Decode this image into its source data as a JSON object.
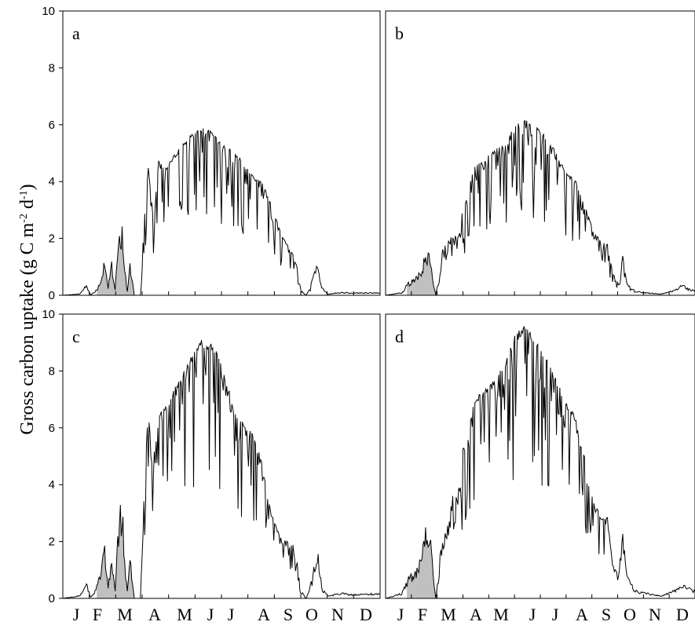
{
  "chart_data": {
    "type": "line",
    "ylabel": "Gross carbon uptake (g C m-2 d-1)",
    "ylabel_parts": {
      "main": "Gross carbon uptake (g C m",
      "exp1": "-2",
      "mid": " d",
      "exp2": "-1",
      "end": ")"
    },
    "ylim": [
      0,
      10
    ],
    "yticks": [
      "0",
      "2",
      "4",
      "6",
      "8",
      "10"
    ],
    "xlim": [
      1,
      365
    ],
    "month_labels": [
      "J",
      "F",
      "M",
      "A",
      "M",
      "J",
      "J",
      "A",
      "S",
      "O",
      "N",
      "D"
    ],
    "grid": false,
    "fill_color": "#c0c0c0",
    "line_color": "#000000",
    "panels": [
      {
        "label": "a",
        "anchors": [
          [
            1,
            0
          ],
          [
            20,
            0.05
          ],
          [
            28,
            0.4
          ],
          [
            33,
            0.02
          ],
          [
            38,
            0.15
          ],
          [
            44,
            0.5
          ],
          [
            49,
            1.5
          ],
          [
            53,
            0.3
          ],
          [
            57,
            1.2
          ],
          [
            61,
            0.2
          ],
          [
            64,
            1.8
          ],
          [
            69,
            2.8
          ],
          [
            72,
            1.0
          ],
          [
            75,
            0.2
          ],
          [
            78,
            1.2
          ],
          [
            83,
            0
          ],
          [
            90,
            0
          ],
          [
            94,
            2.5
          ],
          [
            99,
            4.6
          ],
          [
            104,
            3.0
          ],
          [
            110,
            4.8
          ],
          [
            120,
            4.5
          ],
          [
            130,
            5.0
          ],
          [
            140,
            5.4
          ],
          [
            150,
            5.7
          ],
          [
            160,
            5.9
          ],
          [
            170,
            5.8
          ],
          [
            180,
            5.5
          ],
          [
            190,
            5.2
          ],
          [
            200,
            5.0
          ],
          [
            210,
            4.6
          ],
          [
            220,
            4.2
          ],
          [
            230,
            4.0
          ],
          [
            240,
            3.2
          ],
          [
            250,
            2.3
          ],
          [
            260,
            1.7
          ],
          [
            268,
            1.3
          ],
          [
            274,
            0.2
          ],
          [
            280,
            0
          ],
          [
            284,
            0.2
          ],
          [
            290,
            0.9
          ],
          [
            294,
            1.2
          ],
          [
            298,
            0.3
          ],
          [
            305,
            0.05
          ],
          [
            320,
            0.12
          ],
          [
            335,
            0.1
          ],
          [
            365,
            0.1
          ]
        ],
        "shaded": [
          [
            40,
            86
          ]
        ]
      },
      {
        "label": "b",
        "anchors": [
          [
            1,
            0
          ],
          [
            20,
            0.1
          ],
          [
            28,
            0.5
          ],
          [
            35,
            0.6
          ],
          [
            42,
            1.0
          ],
          [
            48,
            1.6
          ],
          [
            53,
            1.7
          ],
          [
            57,
            0.6
          ],
          [
            60,
            0
          ],
          [
            63,
            0.5
          ],
          [
            68,
            1.6
          ],
          [
            75,
            2.0
          ],
          [
            85,
            2.7
          ],
          [
            95,
            3.3
          ],
          [
            105,
            4.5
          ],
          [
            115,
            4.8
          ],
          [
            125,
            5.0
          ],
          [
            135,
            5.3
          ],
          [
            145,
            5.6
          ],
          [
            155,
            6.0
          ],
          [
            165,
            6.2
          ],
          [
            175,
            6.0
          ],
          [
            185,
            5.8
          ],
          [
            195,
            5.4
          ],
          [
            205,
            4.8
          ],
          [
            215,
            4.3
          ],
          [
            225,
            4.0
          ],
          [
            235,
            3.2
          ],
          [
            245,
            2.3
          ],
          [
            255,
            1.9
          ],
          [
            262,
            1.8
          ],
          [
            268,
            0.8
          ],
          [
            275,
            0.4
          ],
          [
            280,
            1.4
          ],
          [
            285,
            0.4
          ],
          [
            295,
            0.15
          ],
          [
            310,
            0.1
          ],
          [
            325,
            0.05
          ],
          [
            340,
            0.2
          ],
          [
            350,
            0.4
          ],
          [
            365,
            0.15
          ]
        ],
        "shaded": [
          [
            26,
            62
          ]
        ]
      },
      {
        "label": "c",
        "anchors": [
          [
            1,
            0
          ],
          [
            20,
            0.1
          ],
          [
            28,
            0.6
          ],
          [
            33,
            0.05
          ],
          [
            38,
            0.3
          ],
          [
            44,
            0.9
          ],
          [
            49,
            2.0
          ],
          [
            53,
            0.4
          ],
          [
            57,
            1.6
          ],
          [
            61,
            0.3
          ],
          [
            64,
            2.6
          ],
          [
            69,
            3.8
          ],
          [
            72,
            1.5
          ],
          [
            75,
            0.3
          ],
          [
            78,
            1.6
          ],
          [
            83,
            0
          ],
          [
            90,
            0
          ],
          [
            94,
            3.5
          ],
          [
            99,
            6.8
          ],
          [
            104,
            4.5
          ],
          [
            110,
            6.5
          ],
          [
            120,
            6.8
          ],
          [
            130,
            7.5
          ],
          [
            140,
            8.0
          ],
          [
            150,
            8.6
          ],
          [
            160,
            9.1
          ],
          [
            170,
            9.0
          ],
          [
            180,
            8.6
          ],
          [
            190,
            7.5
          ],
          [
            200,
            6.5
          ],
          [
            210,
            6.1
          ],
          [
            220,
            5.8
          ],
          [
            230,
            4.7
          ],
          [
            240,
            3.0
          ],
          [
            250,
            2.2
          ],
          [
            260,
            2.0
          ],
          [
            268,
            1.8
          ],
          [
            274,
            0.3
          ],
          [
            280,
            0
          ],
          [
            284,
            0.3
          ],
          [
            290,
            1.4
          ],
          [
            294,
            1.7
          ],
          [
            298,
            0.4
          ],
          [
            305,
            0.1
          ],
          [
            320,
            0.2
          ],
          [
            335,
            0.15
          ],
          [
            365,
            0.2
          ]
        ],
        "shaded": [
          [
            40,
            86
          ]
        ]
      },
      {
        "label": "d",
        "anchors": [
          [
            1,
            0
          ],
          [
            20,
            0.2
          ],
          [
            28,
            0.8
          ],
          [
            35,
            1.0
          ],
          [
            42,
            1.6
          ],
          [
            48,
            2.6
          ],
          [
            53,
            2.8
          ],
          [
            57,
            1.0
          ],
          [
            60,
            0
          ],
          [
            63,
            0.8
          ],
          [
            68,
            2.6
          ],
          [
            75,
            3.3
          ],
          [
            85,
            4.5
          ],
          [
            95,
            5.6
          ],
          [
            105,
            7.0
          ],
          [
            115,
            7.3
          ],
          [
            125,
            7.6
          ],
          [
            135,
            8.0
          ],
          [
            145,
            8.6
          ],
          [
            155,
            9.4
          ],
          [
            165,
            9.6
          ],
          [
            175,
            9.2
          ],
          [
            185,
            8.8
          ],
          [
            195,
            8.2
          ],
          [
            205,
            7.5
          ],
          [
            215,
            6.8
          ],
          [
            225,
            6.4
          ],
          [
            235,
            5.0
          ],
          [
            245,
            3.5
          ],
          [
            255,
            2.8
          ],
          [
            262,
            2.9
          ],
          [
            268,
            1.2
          ],
          [
            275,
            0.8
          ],
          [
            280,
            2.3
          ],
          [
            285,
            0.8
          ],
          [
            295,
            0.3
          ],
          [
            310,
            0.2
          ],
          [
            325,
            0.1
          ],
          [
            340,
            0.3
          ],
          [
            350,
            0.5
          ],
          [
            365,
            0.3
          ]
        ],
        "shaded": [
          [
            26,
            62
          ]
        ]
      }
    ]
  }
}
